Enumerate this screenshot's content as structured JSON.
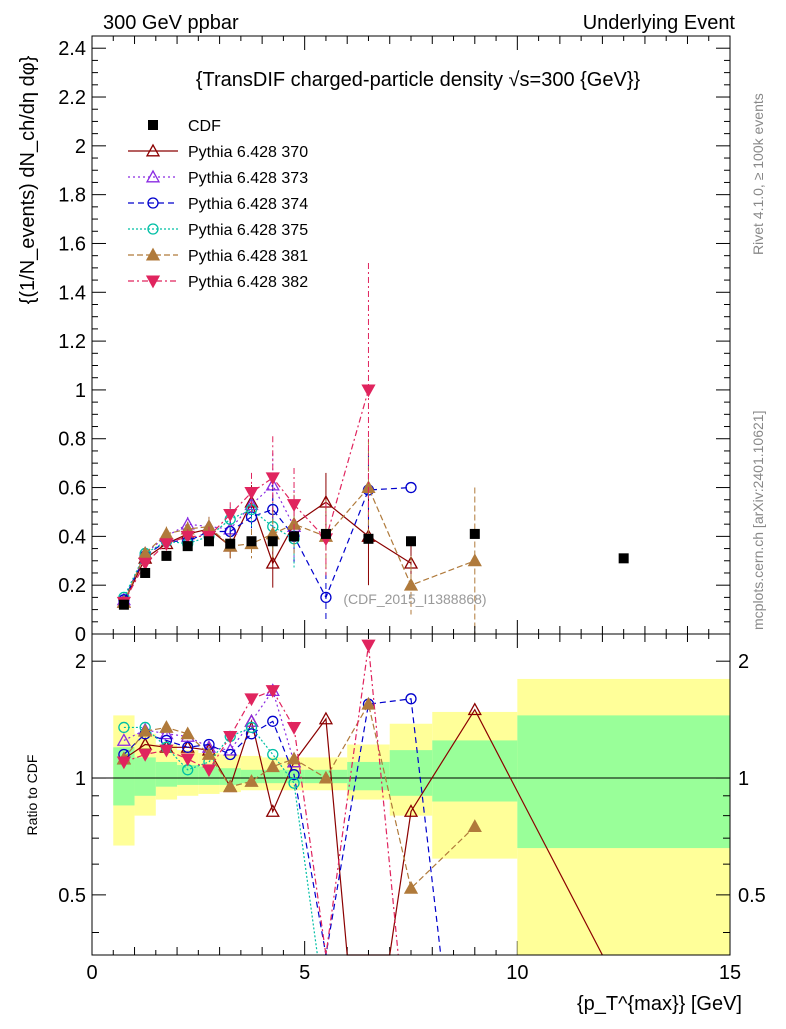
{
  "header": {
    "left": "300 GeV ppbar",
    "right": "Underlying Event"
  },
  "side_text": {
    "rivet": "Rivet 4.1.0, ≥ 100k events",
    "mcplots": "mcplots.cern.ch [arXiv:2401.10621]"
  },
  "chart_data": {
    "type": "scatter",
    "title": "{TransDIF charged-particle density √s=300 {GeV}}",
    "ylabel": "{(1/N_events) dN_ch/dη dφ}",
    "xlabel": "{p_T^{max}} [GeV]",
    "ratio_ylabel": "Ratio to CDF",
    "analysis_tag": "(CDF_2015_I1388868)",
    "xlim": [
      0,
      15
    ],
    "ylim": [
      0,
      2.45
    ],
    "ratio_ylim": [
      0.35,
      2.35
    ],
    "x_ticks": [
      0,
      5,
      10,
      15
    ],
    "x_tick_labels": [
      "0",
      "5",
      "10",
      "15"
    ],
    "y_ticks": [
      0,
      0.2,
      0.4,
      0.6,
      0.8,
      1,
      1.2,
      1.4,
      1.6,
      1.8,
      2,
      2.2,
      2.4
    ],
    "y_tick_labels": [
      "0",
      "0.2",
      "0.4",
      "0.6",
      "0.8",
      "1",
      "1.2",
      "1.4",
      "1.6",
      "1.8",
      "2",
      "2.2",
      "2.4"
    ],
    "ratio_ticks": [
      0.5,
      1,
      2
    ],
    "ratio_tick_labels": [
      "0.5",
      "1",
      "2"
    ],
    "data": {
      "name": "CDF",
      "x": [
        0.75,
        1.25,
        1.75,
        2.25,
        2.75,
        3.25,
        3.75,
        4.25,
        4.75,
        5.5,
        6.5,
        7.5,
        9,
        12.5
      ],
      "y": [
        0.12,
        0.25,
        0.32,
        0.36,
        0.38,
        0.37,
        0.38,
        0.38,
        0.4,
        0.41,
        0.39,
        0.38,
        0.41,
        0.31
      ],
      "err": [
        0.01,
        0.01,
        0.01,
        0.01,
        0.01,
        0.01,
        0.01,
        0.01,
        0.01,
        0.01,
        0.01,
        0.01,
        0.01,
        0.01
      ]
    },
    "bands": {
      "edges": [
        0.5,
        1,
        1.5,
        2,
        2.5,
        3,
        3.5,
        4,
        4.5,
        5,
        6,
        7,
        8,
        10,
        15
      ],
      "green_lo": [
        0.85,
        0.9,
        0.95,
        0.96,
        0.96,
        0.96,
        0.97,
        0.97,
        0.97,
        0.97,
        0.93,
        0.9,
        0.87,
        0.66
      ],
      "green_hi": [
        1.2,
        1.13,
        1.1,
        1.08,
        1.07,
        1.06,
        1.05,
        1.05,
        1.05,
        1.05,
        1.1,
        1.18,
        1.25,
        1.45
      ],
      "yellow_lo": [
        0.67,
        0.8,
        0.88,
        0.9,
        0.91,
        0.92,
        0.93,
        0.93,
        0.93,
        0.93,
        0.88,
        0.8,
        0.62,
        0.35
      ],
      "yellow_hi": [
        1.45,
        1.3,
        1.22,
        1.18,
        1.16,
        1.15,
        1.14,
        1.13,
        1.13,
        1.13,
        1.22,
        1.38,
        1.48,
        1.8
      ]
    },
    "series": [
      {
        "name": "Pythia 6.428 370",
        "color": "#8b0000",
        "dash": "",
        "marker": "triangle-open",
        "x": [
          0.75,
          1.25,
          1.75,
          2.25,
          2.75,
          3.25,
          3.75,
          4.25,
          4.75,
          5.5,
          6.5,
          7.5
        ],
        "y": [
          0.13,
          0.31,
          0.37,
          0.41,
          0.43,
          0.36,
          0.54,
          0.29,
          0.45,
          0.54,
          0.4,
          0.29
        ],
        "err": [
          0.01,
          0.02,
          0.02,
          0.03,
          0.04,
          0.05,
          0.07,
          0.1,
          0.12,
          0.12,
          0.2,
          0.08
        ],
        "ratio_x": [
          0.75,
          1.25,
          1.75,
          2.25,
          2.75,
          3.25,
          3.75,
          4.25,
          4.75,
          5.5,
          6.0,
          7.0,
          7.5,
          9,
          12.0
        ],
        "ratio_y": [
          1.12,
          1.22,
          1.2,
          1.2,
          1.18,
          0.95,
          1.4,
          0.82,
          1.1,
          1.42,
          0.2,
          0.2,
          0.82,
          1.5,
          0.2
        ]
      },
      {
        "name": "Pythia 6.428 373",
        "color": "#8a2be2",
        "dash": "2,3",
        "marker": "triangle-open",
        "x": [
          0.75,
          1.25,
          1.75,
          2.25,
          2.75,
          3.25,
          3.75,
          4.25,
          4.75
        ],
        "y": [
          0.14,
          0.33,
          0.4,
          0.45,
          0.44,
          0.43,
          0.53,
          0.61,
          0.44
        ],
        "err": [
          0.01,
          0.02,
          0.03,
          0.03,
          0.04,
          0.05,
          0.07,
          0.13,
          0.15
        ],
        "ratio_x": [
          0.75,
          1.25,
          1.75,
          2.25,
          2.75,
          3.25,
          3.75,
          4.25,
          4.75
        ],
        "ratio_y": [
          1.25,
          1.33,
          1.3,
          1.28,
          1.2,
          1.18,
          1.4,
          1.68,
          1.1
        ]
      },
      {
        "name": "Pythia 6.428 374",
        "color": "#0000cd",
        "dash": "6,4",
        "marker": "circle-open",
        "x": [
          0.75,
          1.25,
          1.75,
          2.25,
          2.75,
          3.25,
          3.75,
          4.25,
          4.75,
          5.5,
          6.5,
          7.5
        ],
        "y": [
          0.14,
          0.32,
          0.38,
          0.38,
          0.42,
          0.42,
          0.48,
          0.51,
          0.4,
          0.15,
          0.59,
          0.6
        ],
        "err": [
          0.01,
          0.02,
          0.02,
          0.03,
          0.04,
          0.05,
          0.06,
          0.1,
          0.12,
          0.1,
          0.15,
          0.0
        ],
        "ratio_x": [
          0.75,
          1.25,
          1.75,
          2.25,
          2.75,
          3.25,
          3.75,
          4.25,
          4.75,
          5.5,
          6.5,
          7.5,
          8.2
        ],
        "ratio_y": [
          1.15,
          1.3,
          1.25,
          1.2,
          1.22,
          1.15,
          1.3,
          1.4,
          1.02,
          0.35,
          1.55,
          1.6,
          0.35
        ]
      },
      {
        "name": "Pythia 6.428 375",
        "color": "#00bfa5",
        "dash": "2,2",
        "marker": "circle-open",
        "x": [
          0.75,
          1.25,
          1.75,
          2.25,
          2.75,
          3.25,
          3.75,
          4.25,
          4.75
        ],
        "y": [
          0.15,
          0.33,
          0.38,
          0.37,
          0.4,
          0.47,
          0.51,
          0.44,
          0.39
        ],
        "err": [
          0.01,
          0.02,
          0.02,
          0.03,
          0.04,
          0.05,
          0.07,
          0.1,
          0.12
        ],
        "ratio_x": [
          0.75,
          1.25,
          1.75,
          2.25,
          2.75,
          3.25,
          3.75,
          4.25,
          4.75,
          5.3
        ],
        "ratio_y": [
          1.35,
          1.35,
          1.2,
          1.05,
          1.1,
          1.28,
          1.35,
          1.15,
          0.97,
          0.35
        ]
      },
      {
        "name": "Pythia 6.428 381",
        "color": "#b07a3b",
        "dash": "6,3",
        "marker": "triangle-filled",
        "x": [
          0.75,
          1.25,
          1.75,
          2.25,
          2.75,
          3.25,
          3.75,
          4.25,
          4.75,
          5.5,
          6.5,
          7.5,
          9
        ],
        "y": [
          0.13,
          0.33,
          0.41,
          0.43,
          0.44,
          0.36,
          0.37,
          0.41,
          0.45,
          0.4,
          0.6,
          0.2,
          0.3
        ],
        "err": [
          0.01,
          0.02,
          0.03,
          0.03,
          0.04,
          0.05,
          0.06,
          0.1,
          0.12,
          0.15,
          0.2,
          0.12,
          0.3
        ],
        "ratio_x": [
          0.75,
          1.25,
          1.75,
          2.25,
          2.75,
          3.25,
          3.75,
          4.25,
          4.75,
          5.5,
          6.5,
          7.5,
          9
        ],
        "ratio_y": [
          1.12,
          1.32,
          1.35,
          1.3,
          1.15,
          0.95,
          0.98,
          1.07,
          1.12,
          1.0,
          1.55,
          0.52,
          0.75
        ]
      },
      {
        "name": "Pythia 6.428 382",
        "color": "#e0245e",
        "dash": "6,3,2,3",
        "marker": "triangle-down-filled",
        "x": [
          0.75,
          1.25,
          1.75,
          2.25,
          2.75,
          3.25,
          3.75,
          4.25,
          4.75,
          5.5,
          6.5
        ],
        "y": [
          0.13,
          0.29,
          0.37,
          0.4,
          0.4,
          0.49,
          0.58,
          0.64,
          0.53,
          0.39,
          1.0
        ],
        "err": [
          0.01,
          0.02,
          0.02,
          0.03,
          0.04,
          0.05,
          0.08,
          0.17,
          0.15,
          0.15,
          0.52
        ],
        "ratio_x": [
          0.75,
          1.25,
          1.75,
          2.25,
          2.75,
          3.25,
          3.75,
          4.25,
          4.75,
          5.5,
          6.5,
          7.2
        ],
        "ratio_y": [
          1.1,
          1.15,
          1.18,
          1.12,
          1.05,
          1.28,
          1.6,
          1.68,
          1.35,
          0.35,
          2.2,
          0.35
        ]
      }
    ]
  }
}
